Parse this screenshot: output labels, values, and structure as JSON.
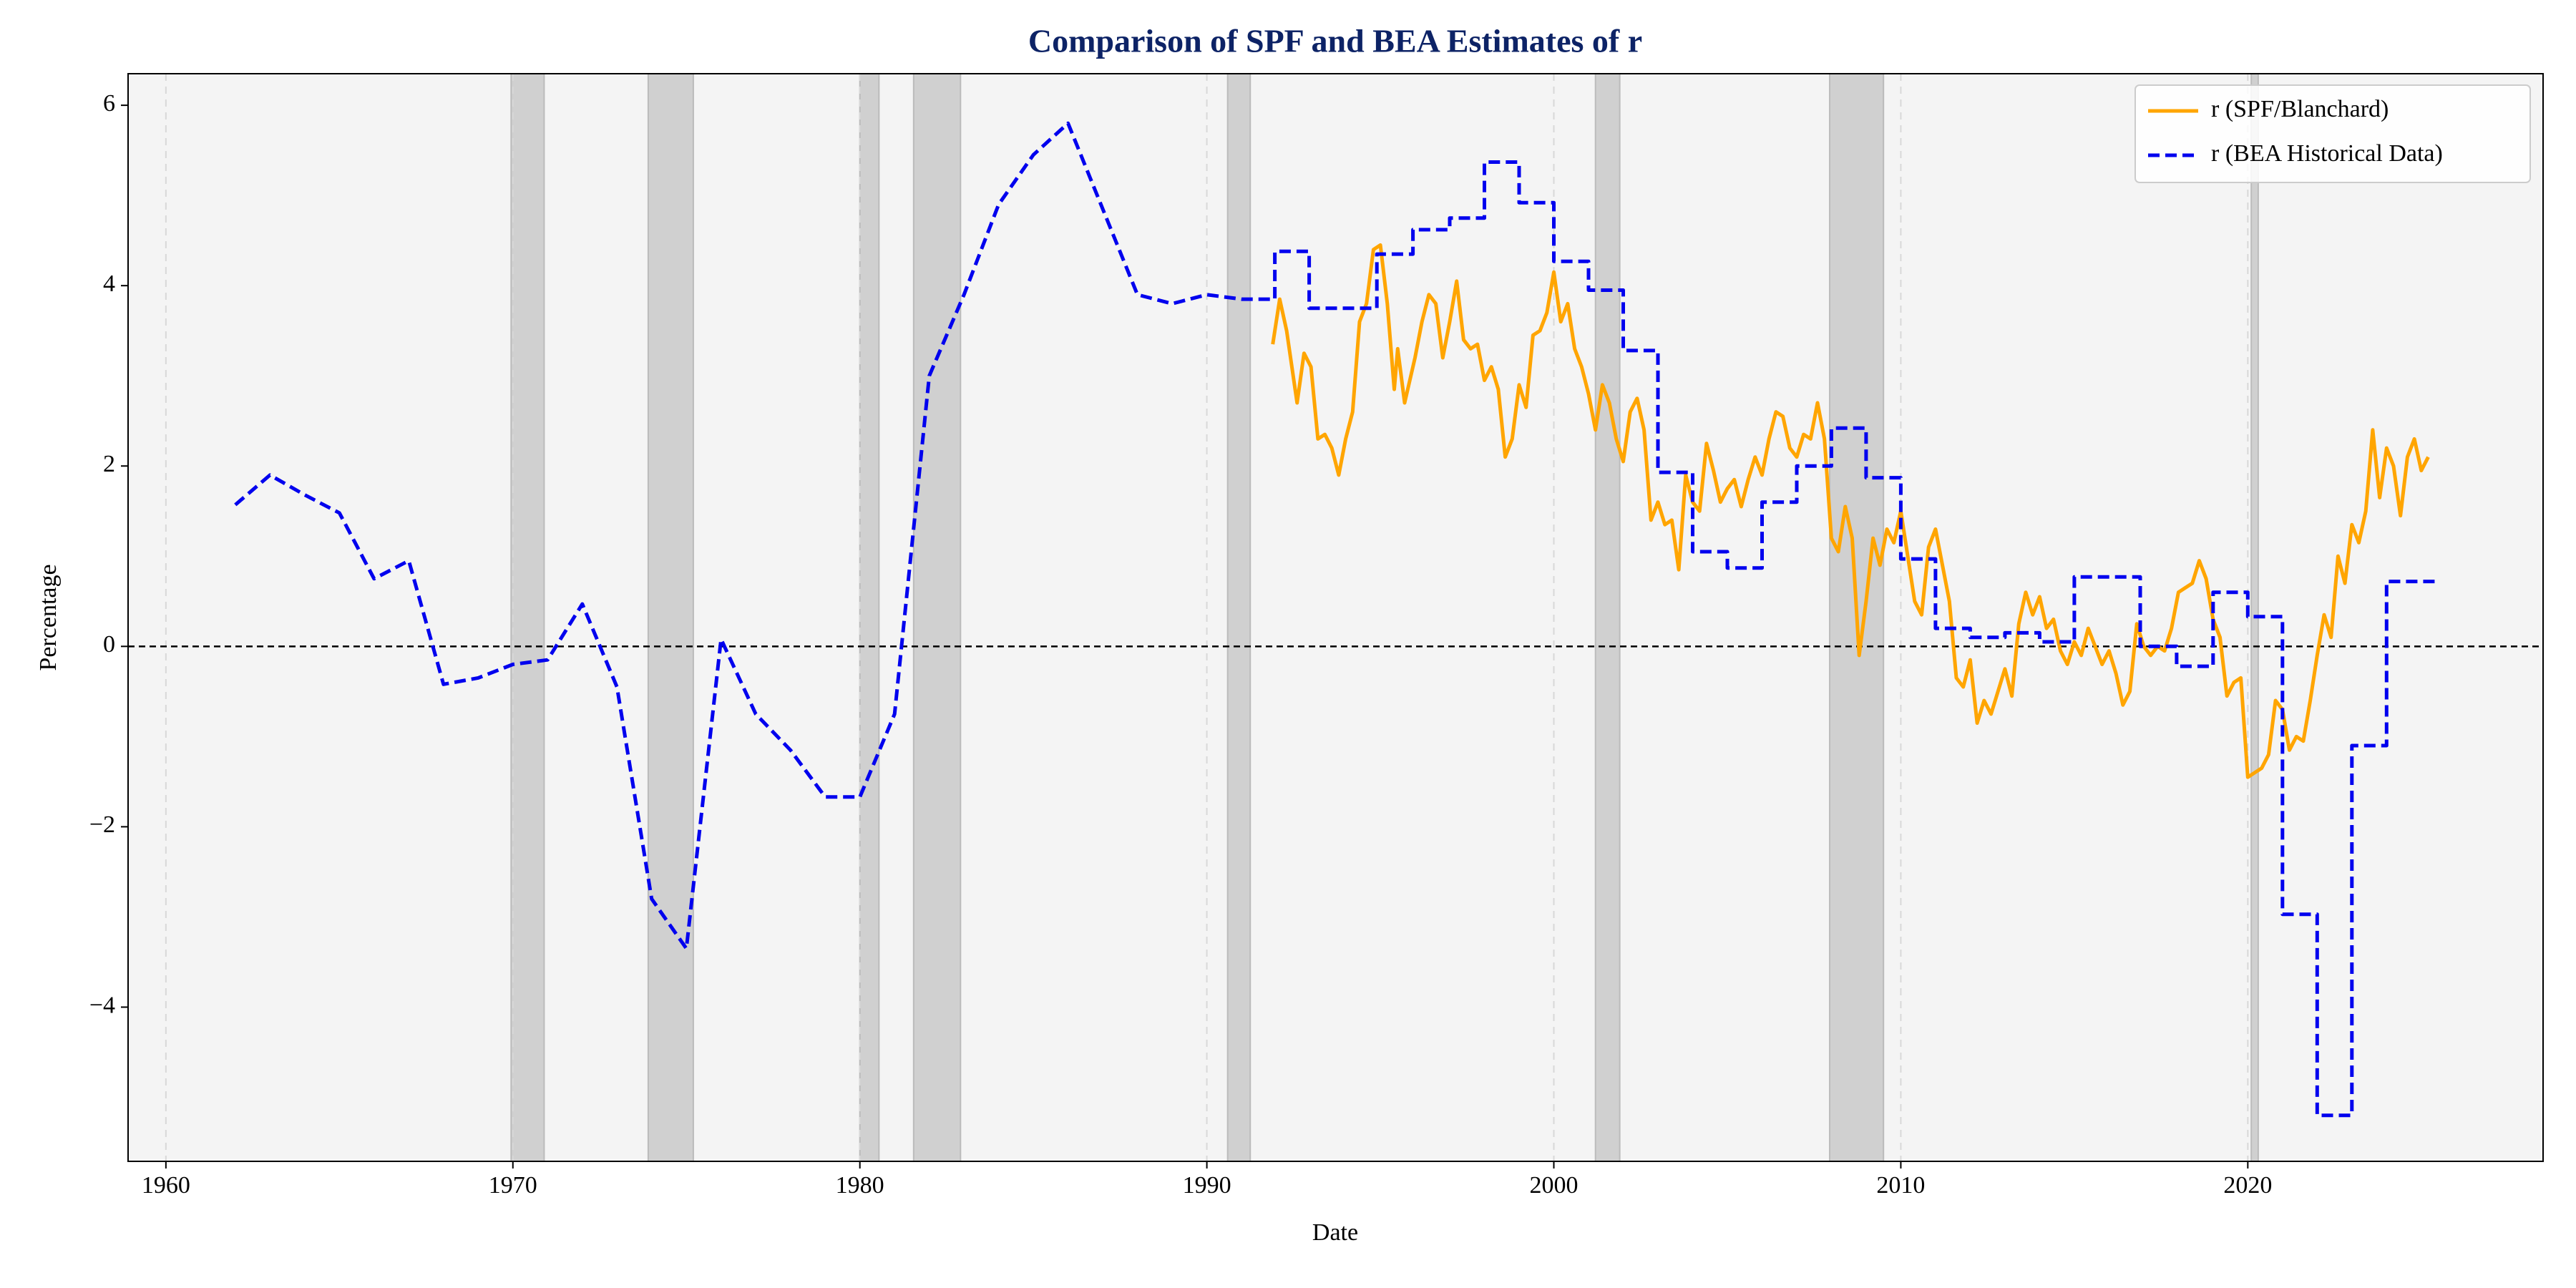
{
  "chart_data": {
    "type": "line",
    "title": "Comparison of SPF and BEA Estimates of r",
    "x_label": "Date",
    "y_label": "Percentage",
    "xlim": [
      1958.91,
      2028.51
    ],
    "ylim": [
      -5.71,
      6.35
    ],
    "xticks": [
      1960,
      1970,
      1980,
      1990,
      2000,
      2010,
      2020
    ],
    "yticks": [
      {
        "value": -4,
        "label": "−4"
      },
      {
        "value": -2,
        "label": "−2"
      },
      0,
      2,
      4,
      6
    ],
    "x_grid": true,
    "hline": 0,
    "legend": "upper right",
    "recessions": [
      [
        1969.95,
        1970.9
      ],
      [
        1973.9,
        1975.2
      ],
      [
        1980.0,
        1980.55
      ],
      [
        1981.55,
        1982.9
      ],
      [
        1990.6,
        1991.25
      ],
      [
        2001.2,
        2001.9
      ],
      [
        2007.95,
        2009.5
      ],
      [
        2020.1,
        2020.3
      ]
    ],
    "series": [
      {
        "name": "r (SPF/Blanchard)",
        "color": "#ffa500",
        "linestyle": "solid",
        "x": [
          1991.9,
          1992.1,
          1992.3,
          1992.6,
          1992.8,
          1993.0,
          1993.2,
          1993.4,
          1993.6,
          1993.8,
          1994.0,
          1994.2,
          1994.4,
          1994.6,
          1994.8,
          1995.0,
          1995.2,
          1995.4,
          1995.5,
          1995.7,
          1996.0,
          1996.2,
          1996.4,
          1996.6,
          1996.8,
          1997.0,
          1997.2,
          1997.4,
          1997.6,
          1997.8,
          1998.0,
          1998.2,
          1998.4,
          1998.6,
          1998.8,
          1999.0,
          1999.2,
          1999.4,
          1999.6,
          1999.8,
          2000.0,
          2000.2,
          2000.4,
          2000.6,
          2000.8,
          2001.0,
          2001.2,
          2001.4,
          2001.6,
          2001.8,
          2002.0,
          2002.2,
          2002.4,
          2002.6,
          2002.8,
          2003.0,
          2003.2,
          2003.4,
          2003.6,
          2003.8,
          2004.0,
          2004.2,
          2004.4,
          2004.6,
          2004.8,
          2005.0,
          2005.2,
          2005.4,
          2005.6,
          2005.8,
          2006.0,
          2006.2,
          2006.4,
          2006.6,
          2006.8,
          2007.0,
          2007.2,
          2007.4,
          2007.6,
          2007.8,
          2008.0,
          2008.2,
          2008.4,
          2008.6,
          2008.8,
          2009.0,
          2009.2,
          2009.4,
          2009.6,
          2009.8,
          2010.0,
          2010.2,
          2010.4,
          2010.6,
          2010.8,
          2011.0,
          2011.2,
          2011.4,
          2011.6,
          2011.8,
          2012.0,
          2012.2,
          2012.4,
          2012.6,
          2012.8,
          2013.0,
          2013.2,
          2013.4,
          2013.6,
          2013.8,
          2014.0,
          2014.2,
          2014.4,
          2014.6,
          2014.8,
          2015.0,
          2015.2,
          2015.4,
          2015.6,
          2015.8,
          2016.0,
          2016.2,
          2016.4,
          2016.6,
          2016.8,
          2017.0,
          2017.2,
          2017.4,
          2017.6,
          2017.8,
          2018.0,
          2018.2,
          2018.4,
          2018.6,
          2018.8,
          2019.0,
          2019.2,
          2019.4,
          2019.6,
          2019.8,
          2020.0,
          2020.2,
          2020.4,
          2020.6,
          2020.8,
          2021.0,
          2021.2,
          2021.4,
          2021.6,
          2021.8,
          2022.0,
          2022.2,
          2022.4,
          2022.6,
          2022.8,
          2023.0,
          2023.2,
          2023.4,
          2023.6,
          2023.8,
          2024.0,
          2024.2,
          2024.4,
          2024.6,
          2024.8,
          2025.0,
          2025.2
        ],
        "values": [
          3.35,
          3.85,
          3.5,
          2.7,
          3.25,
          3.1,
          2.3,
          2.35,
          2.2,
          1.9,
          2.3,
          2.6,
          3.6,
          3.8,
          4.4,
          4.45,
          3.8,
          2.85,
          3.3,
          2.7,
          3.2,
          3.6,
          3.9,
          3.8,
          3.2,
          3.6,
          4.05,
          3.4,
          3.3,
          3.35,
          2.95,
          3.1,
          2.85,
          2.1,
          2.3,
          2.9,
          2.65,
          3.45,
          3.5,
          3.7,
          4.15,
          3.6,
          3.8,
          3.3,
          3.1,
          2.8,
          2.4,
          2.9,
          2.7,
          2.3,
          2.05,
          2.6,
          2.75,
          2.4,
          1.4,
          1.6,
          1.35,
          1.4,
          0.85,
          1.9,
          1.6,
          1.5,
          2.25,
          1.95,
          1.6,
          1.75,
          1.85,
          1.55,
          1.85,
          2.1,
          1.9,
          2.3,
          2.6,
          2.55,
          2.2,
          2.1,
          2.35,
          2.3,
          2.7,
          2.3,
          1.2,
          1.05,
          1.55,
          1.2,
          -0.1,
          0.5,
          1.2,
          0.9,
          1.3,
          1.15,
          1.5,
          1.0,
          0.5,
          0.35,
          1.1,
          1.3,
          0.9,
          0.5,
          -0.35,
          -0.45,
          -0.15,
          -0.85,
          -0.6,
          -0.75,
          -0.5,
          -0.25,
          -0.55,
          0.25,
          0.6,
          0.35,
          0.55,
          0.2,
          0.3,
          -0.05,
          -0.2,
          0.05,
          -0.1,
          0.2,
          0.0,
          -0.2,
          -0.05,
          -0.3,
          -0.65,
          -0.5,
          0.25,
          0.0,
          -0.1,
          0.0,
          -0.05,
          0.2,
          0.6,
          0.65,
          0.7,
          0.95,
          0.75,
          0.3,
          0.1,
          -0.55,
          -0.4,
          -0.35,
          -1.45,
          -1.4,
          -1.35,
          -1.2,
          -0.6,
          -0.7,
          -1.15,
          -1.0,
          -1.05,
          -0.6,
          -0.1,
          0.35,
          0.1,
          1.0,
          0.7,
          1.35,
          1.15,
          1.5,
          2.4,
          1.65,
          2.2,
          2.0,
          1.45,
          2.1,
          2.3,
          1.95,
          2.1
        ]
      },
      {
        "name": "r (BEA Historical Data)",
        "color": "#0000ee",
        "linestyle": "dashed",
        "x": [
          1962,
          1963,
          1964,
          1965,
          1966,
          1967,
          1968,
          1969,
          1970,
          1971,
          1972,
          1973,
          1974,
          1975,
          1976,
          1977,
          1978,
          1979,
          1980,
          1981,
          1982,
          1983,
          1984,
          1985,
          1986,
          1987,
          1988,
          1989,
          1990,
          1991,
          1991.96,
          1991.96,
          1992.95,
          1992.95,
          1994.9,
          1994.9,
          1995.94,
          1995.94,
          1997.0,
          1997.0,
          1998.0,
          1998.0,
          1999.0,
          1999.0,
          2000.0,
          2000.0,
          2001.0,
          2001.0,
          2002.0,
          2002.0,
          2003.0,
          2003.0,
          2004.0,
          2004.0,
          2005.0,
          2005.0,
          2006.0,
          2006.0,
          2007.0,
          2007.0,
          2008.0,
          2008.0,
          2009.0,
          2009.0,
          2010.0,
          2010.0,
          2011.0,
          2011.0,
          2012.0,
          2012.0,
          2013.0,
          2013.0,
          2014.0,
          2014.0,
          2015.0,
          2015.0,
          2016.9,
          2016.9,
          2017.95,
          2017.95,
          2019.0,
          2019.0,
          2020.0,
          2020.0,
          2021.0,
          2021.0,
          2022.0,
          2022.0,
          2023.0,
          2023.0,
          2024.0,
          2024.0,
          2025.4
        ],
        "values": [
          1.57,
          1.9,
          1.68,
          1.48,
          0.75,
          0.95,
          -0.42,
          -0.35,
          -0.2,
          -0.15,
          0.47,
          -0.45,
          -2.8,
          -3.35,
          0.08,
          -0.75,
          -1.15,
          -1.67,
          -1.67,
          -0.75,
          3.0,
          3.9,
          4.9,
          5.45,
          5.8,
          4.85,
          3.9,
          3.8,
          3.9,
          3.85,
          3.85,
          4.38,
          4.38,
          3.75,
          3.75,
          4.35,
          4.35,
          4.62,
          4.62,
          4.75,
          4.75,
          5.37,
          5.37,
          4.92,
          4.92,
          4.27,
          4.27,
          3.95,
          3.95,
          3.28,
          3.28,
          1.93,
          1.93,
          1.05,
          1.05,
          0.87,
          0.87,
          1.6,
          1.6,
          2.0,
          2.0,
          2.42,
          2.42,
          1.87,
          1.87,
          0.97,
          0.97,
          0.2,
          0.2,
          0.1,
          0.1,
          0.15,
          0.15,
          0.05,
          0.05,
          0.77,
          0.77,
          0.0,
          0.0,
          -0.22,
          -0.22,
          0.6,
          0.6,
          0.33,
          0.33,
          -2.97,
          -2.97,
          -5.2,
          -5.2,
          -1.1,
          -1.1,
          0.72,
          0.72
        ]
      }
    ]
  }
}
